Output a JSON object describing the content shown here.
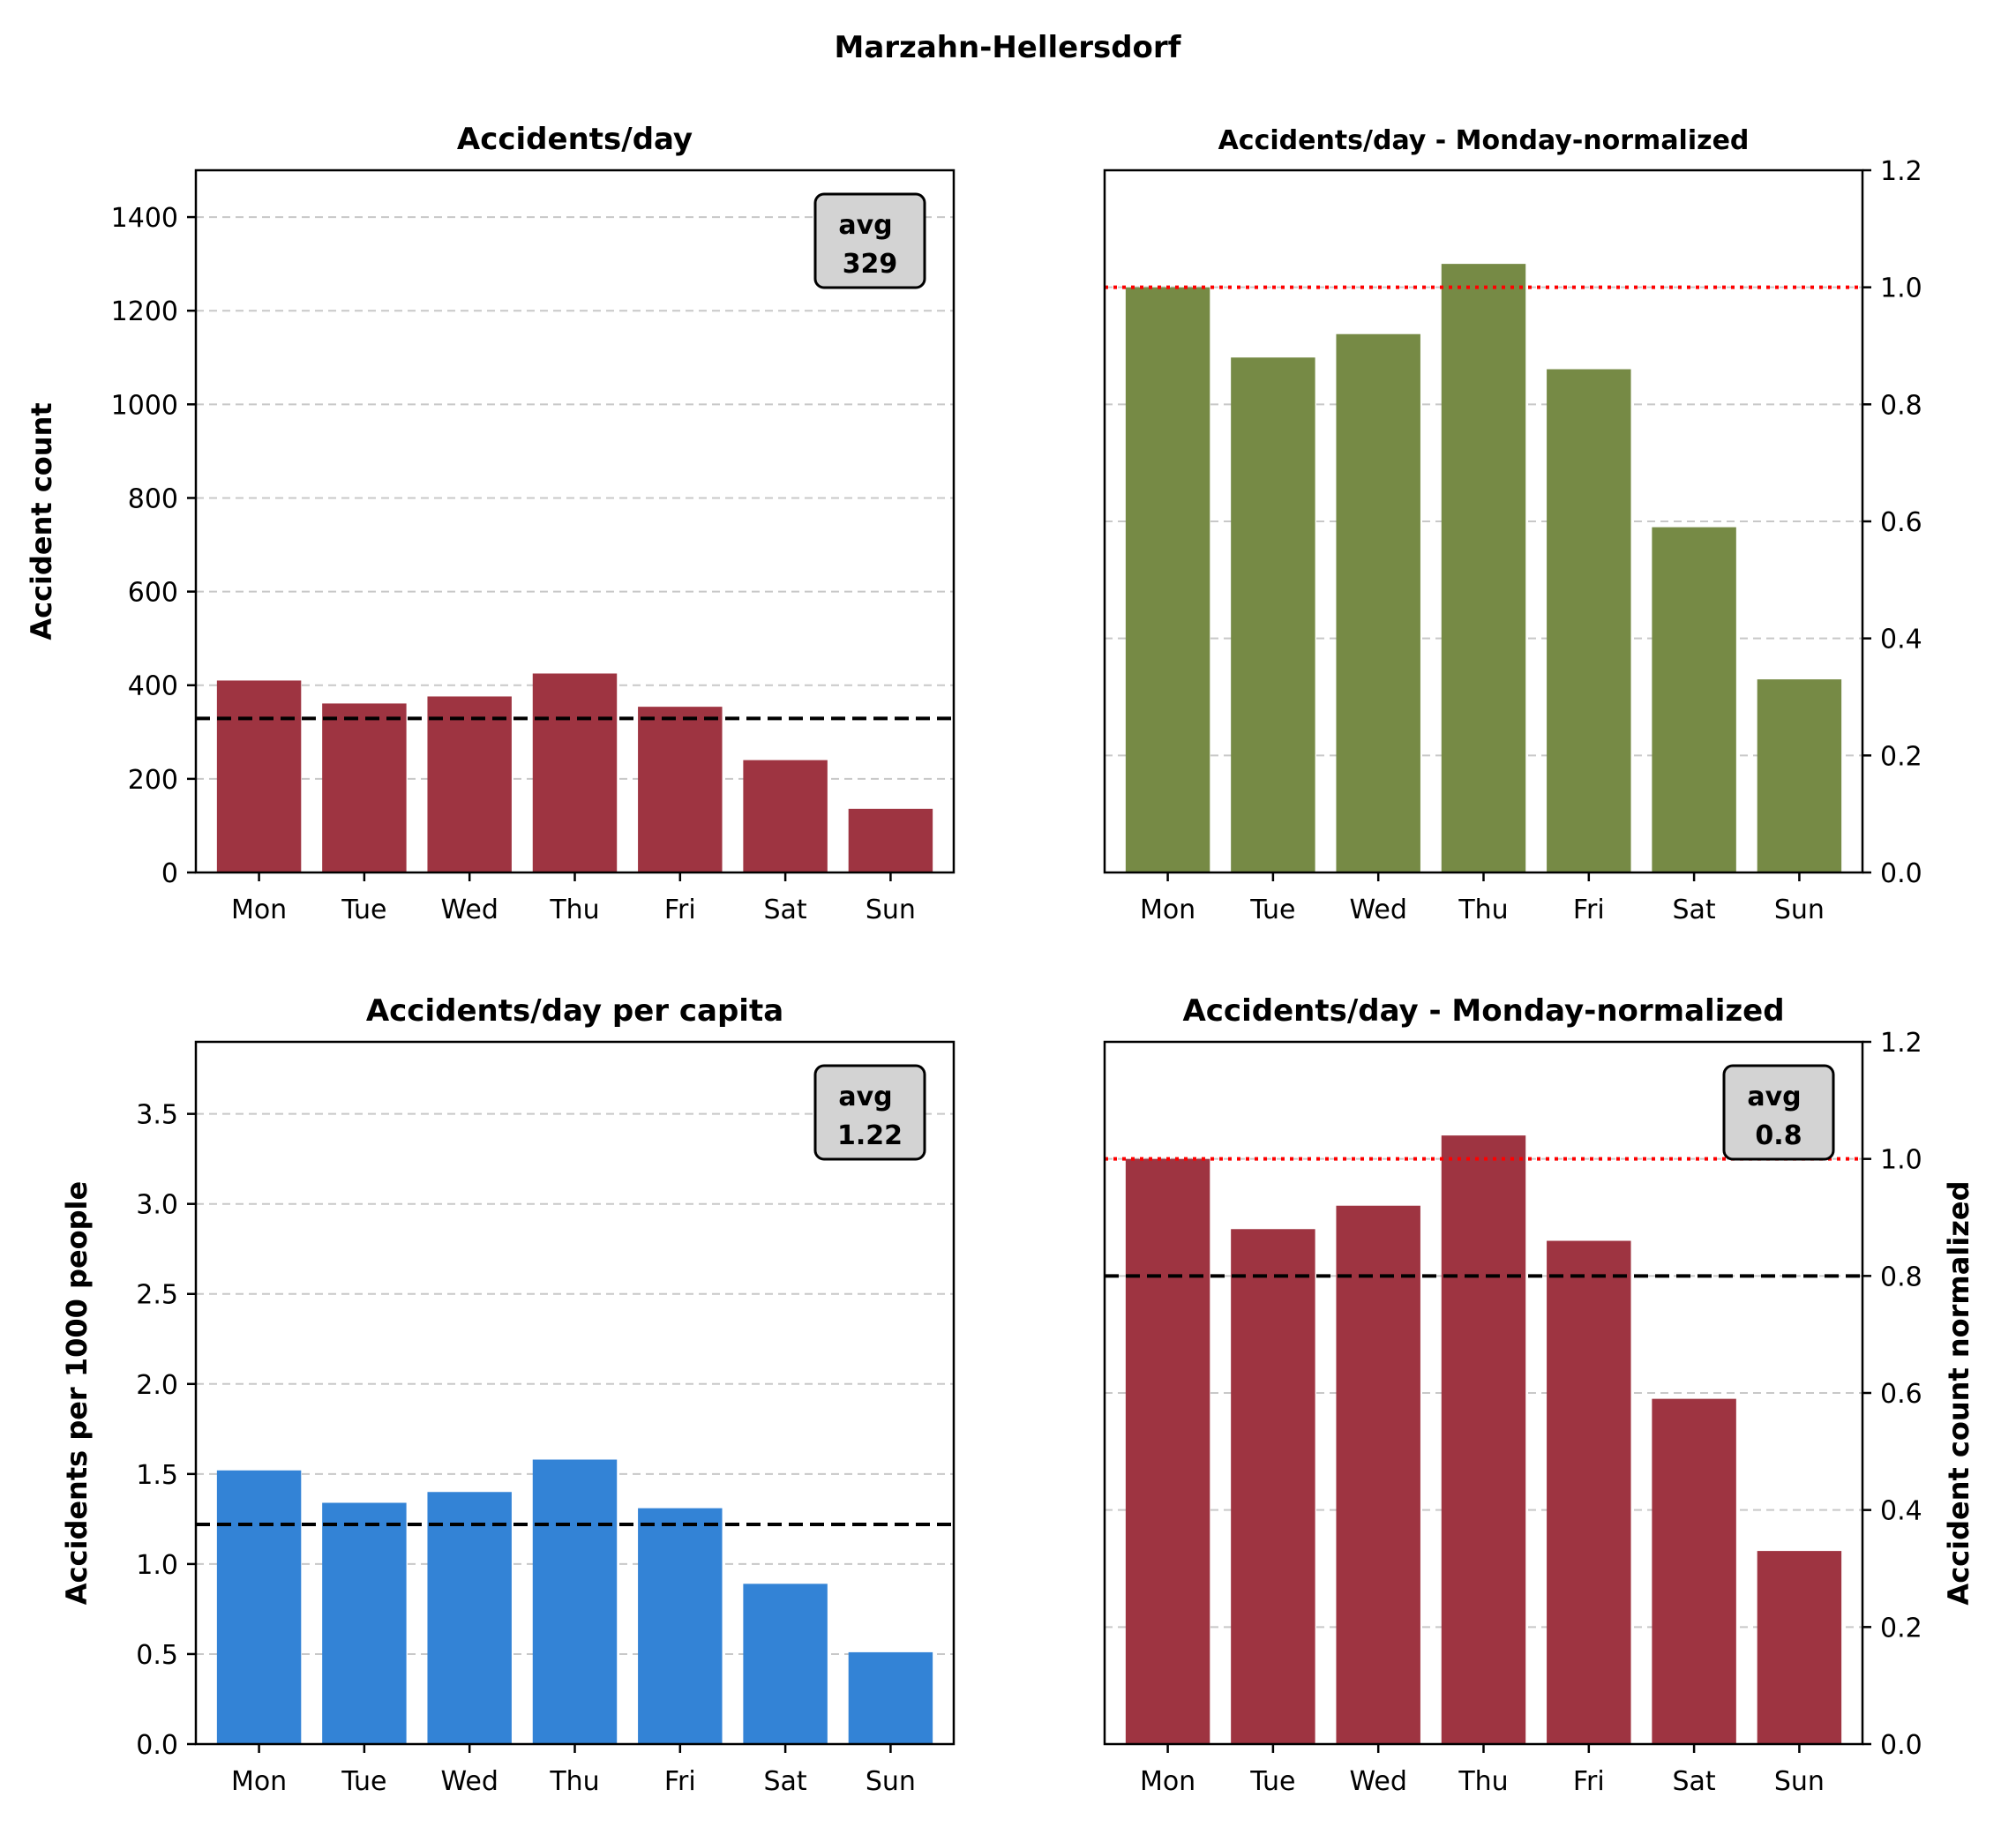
{
  "suptitle": "Marzahn-Hellersdorf",
  "colors": {
    "crimson": "#9e3441",
    "olive": "#768a45",
    "blue": "#3383d6",
    "avg_line": "#000000",
    "ref_line": "#ff0000",
    "grid": "#c8c8c8",
    "avg_box_fill": "#d3d3d3"
  },
  "chart_data": [
    {
      "id": "panel1",
      "type": "bar",
      "title": "Accidents/day",
      "categories": [
        "Mon",
        "Tue",
        "Wed",
        "Thu",
        "Fri",
        "Sat",
        "Sun"
      ],
      "values": [
        410,
        361,
        376,
        425,
        354,
        240,
        136
      ],
      "ylabel": "Accident count",
      "ylim": [
        0,
        1500
      ],
      "yticks": [
        0,
        200,
        400,
        600,
        800,
        1000,
        1200,
        1400
      ],
      "ytick_labels": [
        "0",
        "200",
        "400",
        "600",
        "800",
        "1000",
        "1200",
        "1400"
      ],
      "yaxis_side": "left",
      "grid": "y-dashed",
      "bar_color": "#9e3441",
      "avg_line": 329,
      "avg_box": {
        "label": "avg",
        "value": "329",
        "placement": "top-right"
      }
    },
    {
      "id": "panel2",
      "type": "bar",
      "title": "Accidents/day - Monday-normalized",
      "categories": [
        "Mon",
        "Tue",
        "Wed",
        "Thu",
        "Fri",
        "Sat",
        "Sun"
      ],
      "values": [
        1.0,
        0.88,
        0.92,
        1.04,
        0.86,
        0.59,
        0.33
      ],
      "ylabel": "",
      "ylim": [
        0,
        1.2
      ],
      "yticks": [
        0,
        0.2,
        0.4,
        0.6,
        0.8,
        1.0,
        1.2
      ],
      "ytick_labels": [
        "0.0",
        "0.2",
        "0.4",
        "0.6",
        "0.8",
        "1.0",
        "1.2"
      ],
      "yaxis_side": "right",
      "grid": "y-dashed",
      "bar_color": "#768a45",
      "ref_line": 1.0
    },
    {
      "id": "panel3",
      "type": "bar",
      "title": "Accidents/day per capita",
      "categories": [
        "Mon",
        "Tue",
        "Wed",
        "Thu",
        "Fri",
        "Sat",
        "Sun"
      ],
      "values": [
        1.52,
        1.34,
        1.4,
        1.58,
        1.31,
        0.89,
        0.51
      ],
      "ylabel": "Accidents per 1000 people",
      "ylim": [
        0,
        3.9
      ],
      "yticks": [
        0,
        0.5,
        1.0,
        1.5,
        2.0,
        2.5,
        3.0,
        3.5
      ],
      "ytick_labels": [
        "0.0",
        "0.5",
        "1.0",
        "1.5",
        "2.0",
        "2.5",
        "3.0",
        "3.5"
      ],
      "yaxis_side": "left",
      "grid": "y-dashed",
      "bar_color": "#3383d6",
      "avg_line": 1.22,
      "avg_box": {
        "label": "avg",
        "value": "1.22",
        "placement": "top-right"
      }
    },
    {
      "id": "panel4",
      "type": "bar",
      "title": "Accidents/day - Monday-normalized",
      "categories": [
        "Mon",
        "Tue",
        "Wed",
        "Thu",
        "Fri",
        "Sat",
        "Sun"
      ],
      "values": [
        1.0,
        0.88,
        0.92,
        1.04,
        0.86,
        0.59,
        0.33
      ],
      "ylabel": "Accident count normalized",
      "ylim": [
        0,
        1.2
      ],
      "yticks": [
        0,
        0.2,
        0.4,
        0.6,
        0.8,
        1.0,
        1.2
      ],
      "ytick_labels": [
        "0.0",
        "0.2",
        "0.4",
        "0.6",
        "0.8",
        "1.0",
        "1.2"
      ],
      "yaxis_side": "right",
      "grid": "y-dashed",
      "bar_color": "#9e3441",
      "ref_line": 1.0,
      "avg_line": 0.8,
      "avg_box": {
        "label": "avg",
        "value": "0.8",
        "placement": "top-right"
      }
    }
  ]
}
